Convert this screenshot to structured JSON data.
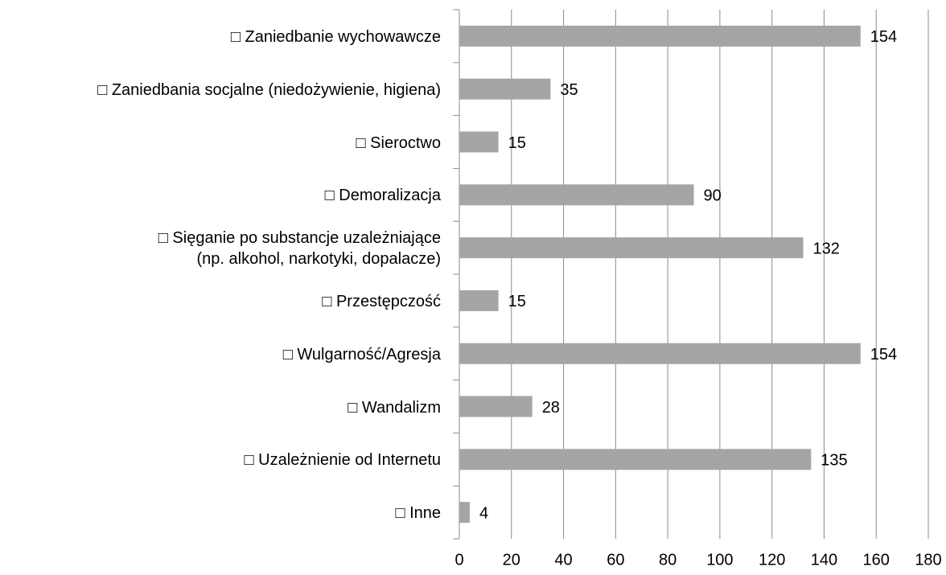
{
  "chart_data": {
    "type": "barh",
    "categories": [
      "□ Zaniedbanie wychowawcze",
      "□ Zaniedbania socjalne (niedożywienie, higiena)",
      "□ Sieroctwo",
      "□ Demoralizacja",
      "□ Sięganie po substancje uzależniające (np. alkohol, narkotyki, dopalacze)",
      "□ Przestępczość",
      "□ Wulgarność/Agresja",
      "□ Wandalizm",
      "□ Uzależnienie od Internetu",
      "□ Inne"
    ],
    "values": [
      154,
      35,
      15,
      90,
      132,
      15,
      154,
      28,
      135,
      4
    ],
    "color": "#a5a5a5",
    "xlim": [
      0,
      180
    ],
    "xticks": [
      0,
      20,
      40,
      60,
      80,
      100,
      120,
      140,
      160,
      180
    ],
    "grid": true
  }
}
